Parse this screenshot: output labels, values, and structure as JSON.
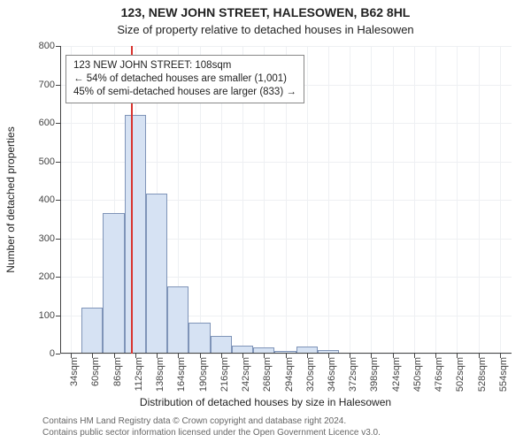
{
  "title": "123, NEW JOHN STREET, HALESOWEN, B62 8HL",
  "subtitle": "Size of property relative to detached houses in Halesowen",
  "ylabel": "Number of detached properties",
  "xlabel": "Distribution of detached houses by size in Halesowen",
  "footer_line1": "Contains HM Land Registry data © Crown copyright and database right 2024.",
  "footer_line2": "Contains public sector information licensed under the Open Government Licence v3.0.",
  "chart": {
    "type": "histogram",
    "background_color": "#ffffff",
    "grid_color": "#eef0f3",
    "axis_color": "#444444",
    "bar_color": "#d6e2f3",
    "bar_border_color": "#7f94b8",
    "marker_color": "#d9332e",
    "font_family": "Arial",
    "title_fontsize": 14,
    "subtitle_fontsize": 13,
    "label_fontsize": 12,
    "tick_fontsize": 11,
    "ylim": [
      0,
      800
    ],
    "ytick_step": 100,
    "x_axis_start": 21,
    "x_tick_start": 34,
    "x_tick_step": 26,
    "x_tick_count": 21,
    "x_unit": "sqm",
    "x_axis_end": 568,
    "bin_width": 26,
    "marker_x": 108,
    "bars": [
      {
        "x_start": 21,
        "count": 0
      },
      {
        "x_start": 47,
        "count": 120
      },
      {
        "x_start": 73,
        "count": 365
      },
      {
        "x_start": 99,
        "count": 620
      },
      {
        "x_start": 125,
        "count": 415
      },
      {
        "x_start": 151,
        "count": 175
      },
      {
        "x_start": 177,
        "count": 80
      },
      {
        "x_start": 203,
        "count": 45
      },
      {
        "x_start": 229,
        "count": 20
      },
      {
        "x_start": 255,
        "count": 15
      },
      {
        "x_start": 281,
        "count": 8
      },
      {
        "x_start": 307,
        "count": 18
      },
      {
        "x_start": 333,
        "count": 10
      },
      {
        "x_start": 359,
        "count": 0
      },
      {
        "x_start": 385,
        "count": 0
      },
      {
        "x_start": 411,
        "count": 0
      },
      {
        "x_start": 437,
        "count": 0
      },
      {
        "x_start": 463,
        "count": 0
      },
      {
        "x_start": 489,
        "count": 0
      },
      {
        "x_start": 515,
        "count": 0
      },
      {
        "x_start": 541,
        "count": 0
      }
    ]
  },
  "info_box": {
    "line1": "123 NEW JOHN STREET: 108sqm",
    "line2": "← 54% of detached houses are smaller (1,001)",
    "line3": "45% of semi-detached houses are larger (833) →"
  }
}
